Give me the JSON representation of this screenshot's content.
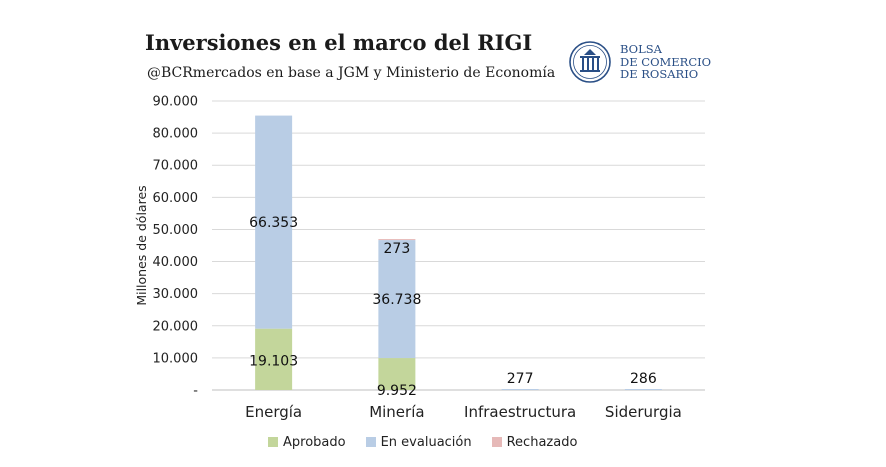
{
  "header": {
    "title": "Inversiones en el marco del RIGI",
    "subtitle": "@BCRmercados en base a JGM y Ministerio de Economía"
  },
  "logo": {
    "line1": "BOLSA",
    "line2": "DE COMERCIO",
    "line3": "DE ROSARIO",
    "color": "#2a4f86"
  },
  "chart_data": {
    "type": "bar",
    "stacked": true,
    "categories": [
      "Energía",
      "Minería",
      "Infraestructura",
      "Siderurgia"
    ],
    "series": [
      {
        "name": "Aprobado",
        "color": "#c3d69b",
        "values": [
          19103,
          9952,
          0,
          0
        ],
        "labels": [
          "19.103",
          "9.952",
          "",
          ""
        ]
      },
      {
        "name": "En evaluación",
        "color": "#b9cde5",
        "values": [
          66353,
          36738,
          277,
          286
        ],
        "labels": [
          "66.353",
          "36.738",
          "277",
          "286"
        ]
      },
      {
        "name": "Rechazado",
        "color": "#e6b9b8",
        "values": [
          0,
          273,
          0,
          0
        ],
        "labels": [
          "",
          "273",
          "",
          ""
        ]
      }
    ],
    "ylabel": "Millones de dólares",
    "xlabel": "",
    "ylim": [
      0,
      90000
    ],
    "yticks": [
      0,
      10000,
      20000,
      30000,
      40000,
      50000,
      60000,
      70000,
      80000,
      90000
    ],
    "ytick_labels": [
      "-",
      "10.000",
      "20.000",
      "30.000",
      "40.000",
      "50.000",
      "60.000",
      "70.000",
      "80.000",
      "90.000"
    ],
    "grid": true,
    "legend_position": "bottom"
  }
}
